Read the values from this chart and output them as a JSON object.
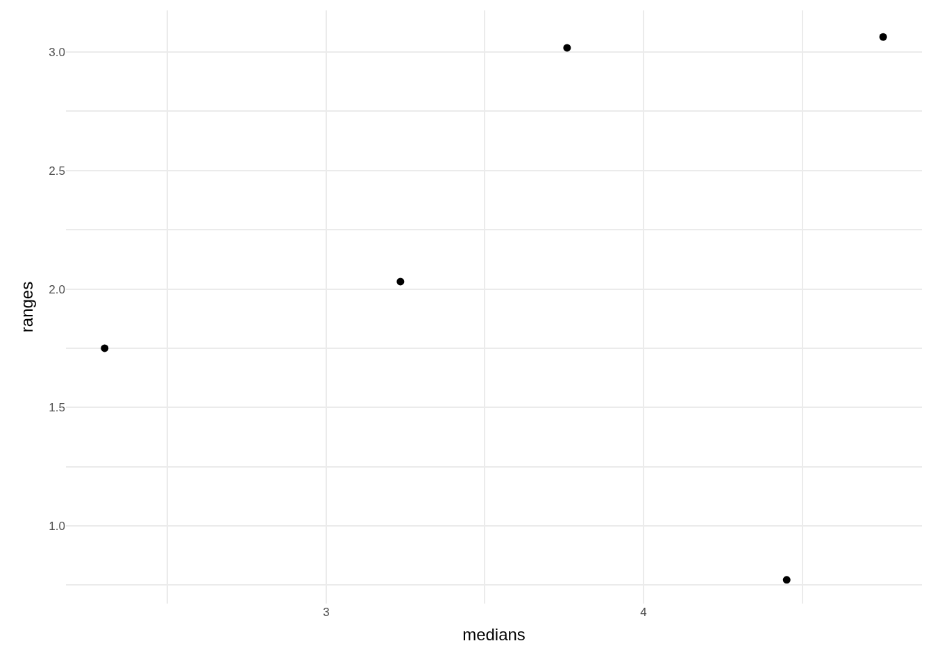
{
  "chart_data": {
    "type": "scatter",
    "xlabel": "medians",
    "ylabel": "ranges",
    "x": [
      2.302,
      3.234,
      3.759,
      4.451,
      4.755
    ],
    "series": [
      {
        "color": "#000000",
        "values": [
          1.75,
          2.031,
          3.018,
          0.772,
          3.064
        ]
      }
    ],
    "xlim": [
      2.18,
      4.877
    ],
    "ylim": [
      0.672,
      3.176
    ],
    "xticks": [
      {
        "value": 2.5,
        "label": null
      },
      {
        "value": 3,
        "label": "3"
      },
      {
        "value": 3.5,
        "label": null
      },
      {
        "value": 4,
        "label": "4"
      },
      {
        "value": 4.5,
        "label": null
      }
    ],
    "yticks": [
      {
        "value": 0.75,
        "label": null
      },
      {
        "value": 1,
        "label": "1.0"
      },
      {
        "value": 1.25,
        "label": null
      },
      {
        "value": 1.5,
        "label": "1.5"
      },
      {
        "value": 1.75,
        "label": null
      },
      {
        "value": 2,
        "label": "2.0"
      },
      {
        "value": 2.25,
        "label": null
      },
      {
        "value": 2.5,
        "label": "2.5"
      },
      {
        "value": 2.75,
        "label": null
      },
      {
        "value": 3,
        "label": "3.0"
      }
    ],
    "grid": true,
    "legend": false,
    "marker": "circle"
  }
}
